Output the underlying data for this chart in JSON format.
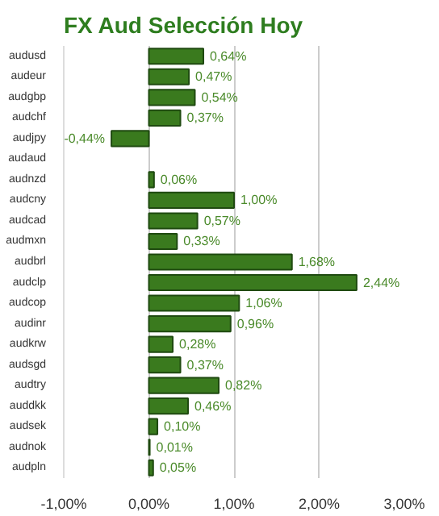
{
  "chart_data": {
    "type": "bar",
    "orientation": "horizontal",
    "title": "FX Aud Selección Hoy",
    "categories": [
      "audusd",
      "audeur",
      "audgbp",
      "audchf",
      "audjpy",
      "audaud",
      "audnzd",
      "audcny",
      "audcad",
      "audmxn",
      "audbrl",
      "audclp",
      "audcop",
      "audinr",
      "audkrw",
      "audsgd",
      "audtry",
      "auddkk",
      "audsek",
      "audnok",
      "audpln"
    ],
    "values": [
      0.64,
      0.47,
      0.54,
      0.37,
      -0.44,
      null,
      0.06,
      1.0,
      0.57,
      0.33,
      1.68,
      2.44,
      1.06,
      0.96,
      0.28,
      0.37,
      0.82,
      0.46,
      0.1,
      0.01,
      0.05
    ],
    "value_labels": [
      "0,64%",
      "0,47%",
      "0,54%",
      "0,37%",
      "-0,44%",
      null,
      "0,06%",
      "1,00%",
      "0,57%",
      "0,33%",
      "1,68%",
      "2,44%",
      "1,06%",
      "0,96%",
      "0,28%",
      "0,37%",
      "0,82%",
      "0,46%",
      "0,10%",
      "0,01%",
      "0,05%"
    ],
    "color": "#3a7a1e",
    "xlim": [
      -1,
      3
    ],
    "xticks": [
      {
        "value": -1,
        "label": "-1,00%"
      },
      {
        "value": 0,
        "label": "0,00%"
      },
      {
        "value": 1,
        "label": "1,00%"
      },
      {
        "value": 2,
        "label": "2,00%"
      },
      {
        "value": 3,
        "label": "3,00%"
      }
    ],
    "grid": "x"
  }
}
